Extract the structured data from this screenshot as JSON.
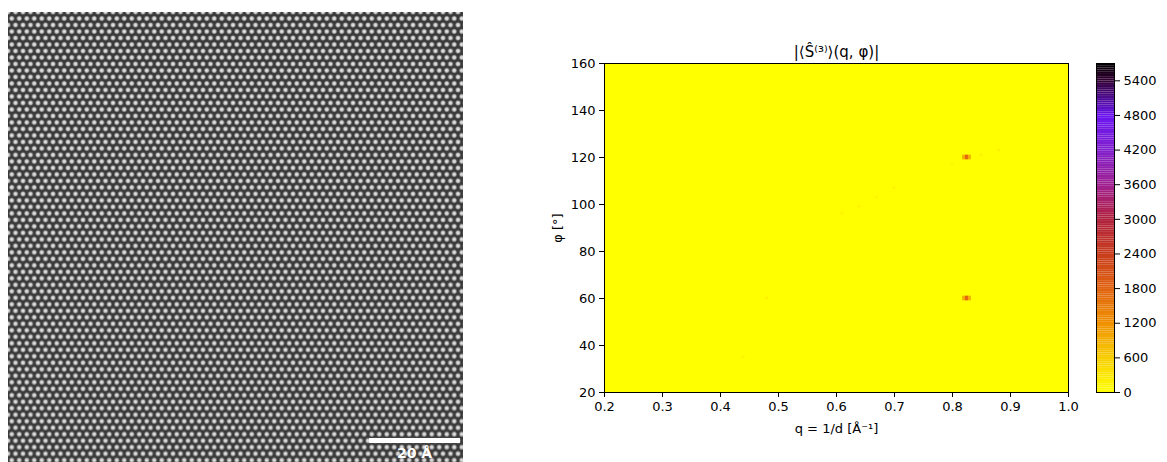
{
  "image_panel": {
    "type": "micrograph",
    "field_of_view_angstrom": 100,
    "scale_bar": {
      "label": "20 Å",
      "length_angstrom": 20
    }
  },
  "chart_data": {
    "type": "heatmap",
    "title": "|⟨Ŝ⁽³⁾⟩(q, φ)|",
    "x_label": "q = 1/d [Å⁻¹]",
    "y_label": "φ [°]",
    "xlim": [
      0.2,
      1.0
    ],
    "xticks": [
      0.2,
      0.3,
      0.4,
      0.5,
      0.6,
      0.7,
      0.8,
      0.9,
      {
        "value": 1,
        "label": "1.0"
      }
    ],
    "ylim": [
      20,
      160
    ],
    "yticks": [
      20,
      40,
      60,
      80,
      100,
      120,
      140,
      160
    ],
    "cell_size": {
      "q": 0.005,
      "phi": 1
    },
    "cells": [
      {
        "q": 0.82,
        "phi": 59.5,
        "value": 900
      },
      {
        "q": 0.825,
        "phi": 59.5,
        "value": 1800
      },
      {
        "q": 0.83,
        "phi": 59.5,
        "value": 900
      },
      {
        "q": 0.82,
        "phi": 60.5,
        "value": 900
      },
      {
        "q": 0.825,
        "phi": 60.5,
        "value": 1800
      },
      {
        "q": 0.83,
        "phi": 60.5,
        "value": 900
      },
      {
        "q": 0.82,
        "phi": 119.5,
        "value": 900
      },
      {
        "q": 0.825,
        "phi": 119.5,
        "value": 1800
      },
      {
        "q": 0.83,
        "phi": 119.5,
        "value": 900
      },
      {
        "q": 0.82,
        "phi": 120.5,
        "value": 900
      },
      {
        "q": 0.825,
        "phi": 120.5,
        "value": 1800
      },
      {
        "q": 0.83,
        "phi": 120.5,
        "value": 900
      },
      {
        "q": 0.44,
        "phi": 35,
        "value": 150
      },
      {
        "q": 0.48,
        "phi": 60,
        "value": 200
      },
      {
        "q": 0.61,
        "phi": 96,
        "value": 150
      },
      {
        "q": 0.64,
        "phi": 99,
        "value": 150
      },
      {
        "q": 0.67,
        "phi": 103,
        "value": 150
      },
      {
        "q": 0.7,
        "phi": 107,
        "value": 150
      },
      {
        "q": 0.8,
        "phi": 117,
        "value": 150
      },
      {
        "q": 0.85,
        "phi": 121,
        "value": 150
      },
      {
        "q": 0.88,
        "phi": 123,
        "value": 150
      }
    ],
    "colorbar": {
      "range": [
        0,
        5700
      ],
      "ticks": [
        0,
        600,
        1200,
        1800,
        2400,
        3000,
        3600,
        4200,
        4800,
        5400
      ]
    }
  }
}
